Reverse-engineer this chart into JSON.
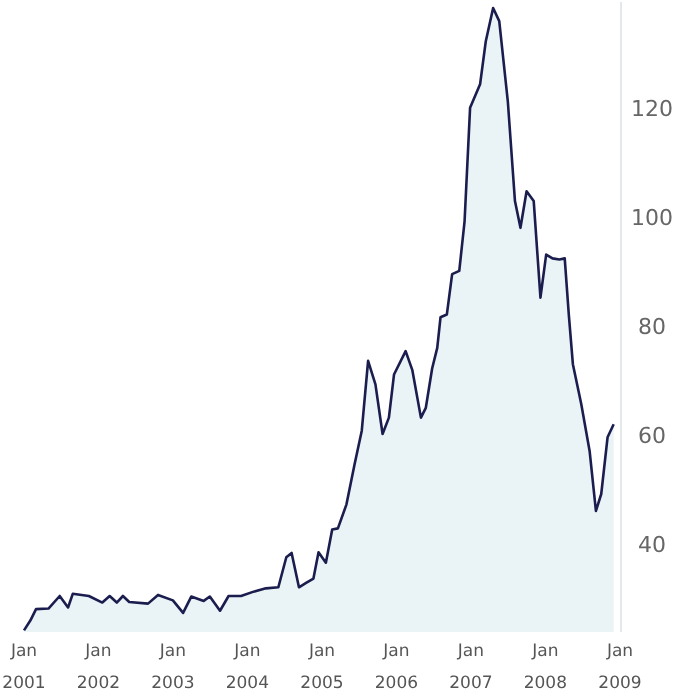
{
  "chart_data": {
    "type": "area",
    "x": [
      "2001-01-01",
      "2001-02-01",
      "2001-03-01",
      "2001-05-01",
      "2001-06-25",
      "2001-08-05",
      "2001-08-28",
      "2001-11-15",
      "2002-01-20",
      "2002-02-25",
      "2002-04-01",
      "2002-05-01",
      "2002-06-01",
      "2002-09-01",
      "2002-10-20",
      "2003-01-01",
      "2003-02-20",
      "2003-04-01",
      "2003-06-01",
      "2003-07-01",
      "2003-08-20",
      "2003-10-01",
      "2003-12-01",
      "2004-02-01",
      "2004-04-01",
      "2004-06-01",
      "2004-07-10",
      "2004-08-05",
      "2004-09-10",
      "2004-10-15",
      "2004-11-20",
      "2004-12-15",
      "2005-01-20",
      "2005-02-20",
      "2005-03-20",
      "2005-05-01",
      "2005-06-10",
      "2005-07-15",
      "2005-08-15",
      "2005-09-20",
      "2005-10-25",
      "2005-11-25",
      "2005-12-20",
      "2006-02-15",
      "2006-03-20",
      "2006-05-01",
      "2006-05-25",
      "2006-06-25",
      "2006-07-20",
      "2006-08-05",
      "2006-09-05",
      "2006-10-01",
      "2006-11-05",
      "2006-12-01",
      "2006-12-28",
      "2007-02-15",
      "2007-03-15",
      "2007-04-20",
      "2007-05-20",
      "2007-07-01",
      "2007-08-05",
      "2007-09-01",
      "2007-10-01",
      "2007-11-05",
      "2007-12-08",
      "2008-01-05",
      "2008-02-05",
      "2008-03-10",
      "2008-04-05",
      "2008-04-25",
      "2008-05-15",
      "2008-06-25",
      "2008-08-05",
      "2008-09-05",
      "2008-10-01",
      "2008-11-01",
      "2008-12-01"
    ],
    "series": [
      {
        "color": "#1b1d4e",
        "values": [
          24.3,
          26.1,
          28.2,
          28.3,
          30.6,
          28.5,
          31,
          30.6,
          29.4,
          30.6,
          29.4,
          30.6,
          29.5,
          29.2,
          30.8,
          29.8,
          27.5,
          30.5,
          29.7,
          30.5,
          27.9,
          30.6,
          30.6,
          31.4,
          32,
          32.2,
          37.7,
          38.5,
          32.2,
          33,
          33.8,
          38.6,
          36.7,
          42.8,
          43,
          47.4,
          54.8,
          60.9,
          73.7,
          69.4,
          60.3,
          63.3,
          71.2,
          75.5,
          72,
          63.3,
          65.1,
          72.3,
          76.1,
          81.7,
          82.2,
          89.6,
          90.2,
          99.3,
          120.1,
          124.4,
          132.3,
          138.4,
          136,
          121.3,
          103,
          98.1,
          104.8,
          103,
          85.3,
          93.2,
          92.5,
          92.3,
          92.5,
          82.2,
          73.1,
          65.8,
          57.2,
          46.2,
          49.3,
          59.7,
          62.1
        ]
      }
    ],
    "xlim": [
      "2001-01-01",
      "2009-01-01"
    ],
    "xticks": [
      {
        "value": "2001-01-01",
        "label": "Jan 2001"
      },
      {
        "value": "2002-01-01",
        "label": "Jan 2002"
      },
      {
        "value": "2003-01-01",
        "label": "Jan 2003"
      },
      {
        "value": "2004-01-01",
        "label": "Jan 2004"
      },
      {
        "value": "2005-01-01",
        "label": "Jan 2005"
      },
      {
        "value": "2006-01-01",
        "label": "Jan 2006"
      },
      {
        "value": "2007-01-01",
        "label": "Jan 2007"
      },
      {
        "value": "2008-01-01",
        "label": "Jan 2008"
      },
      {
        "value": "2009-01-01",
        "label": "Jan 2009"
      }
    ],
    "ylim": [
      24,
      139.5
    ],
    "yticks": [
      40,
      60,
      80,
      100,
      120
    ],
    "grid": false
  }
}
